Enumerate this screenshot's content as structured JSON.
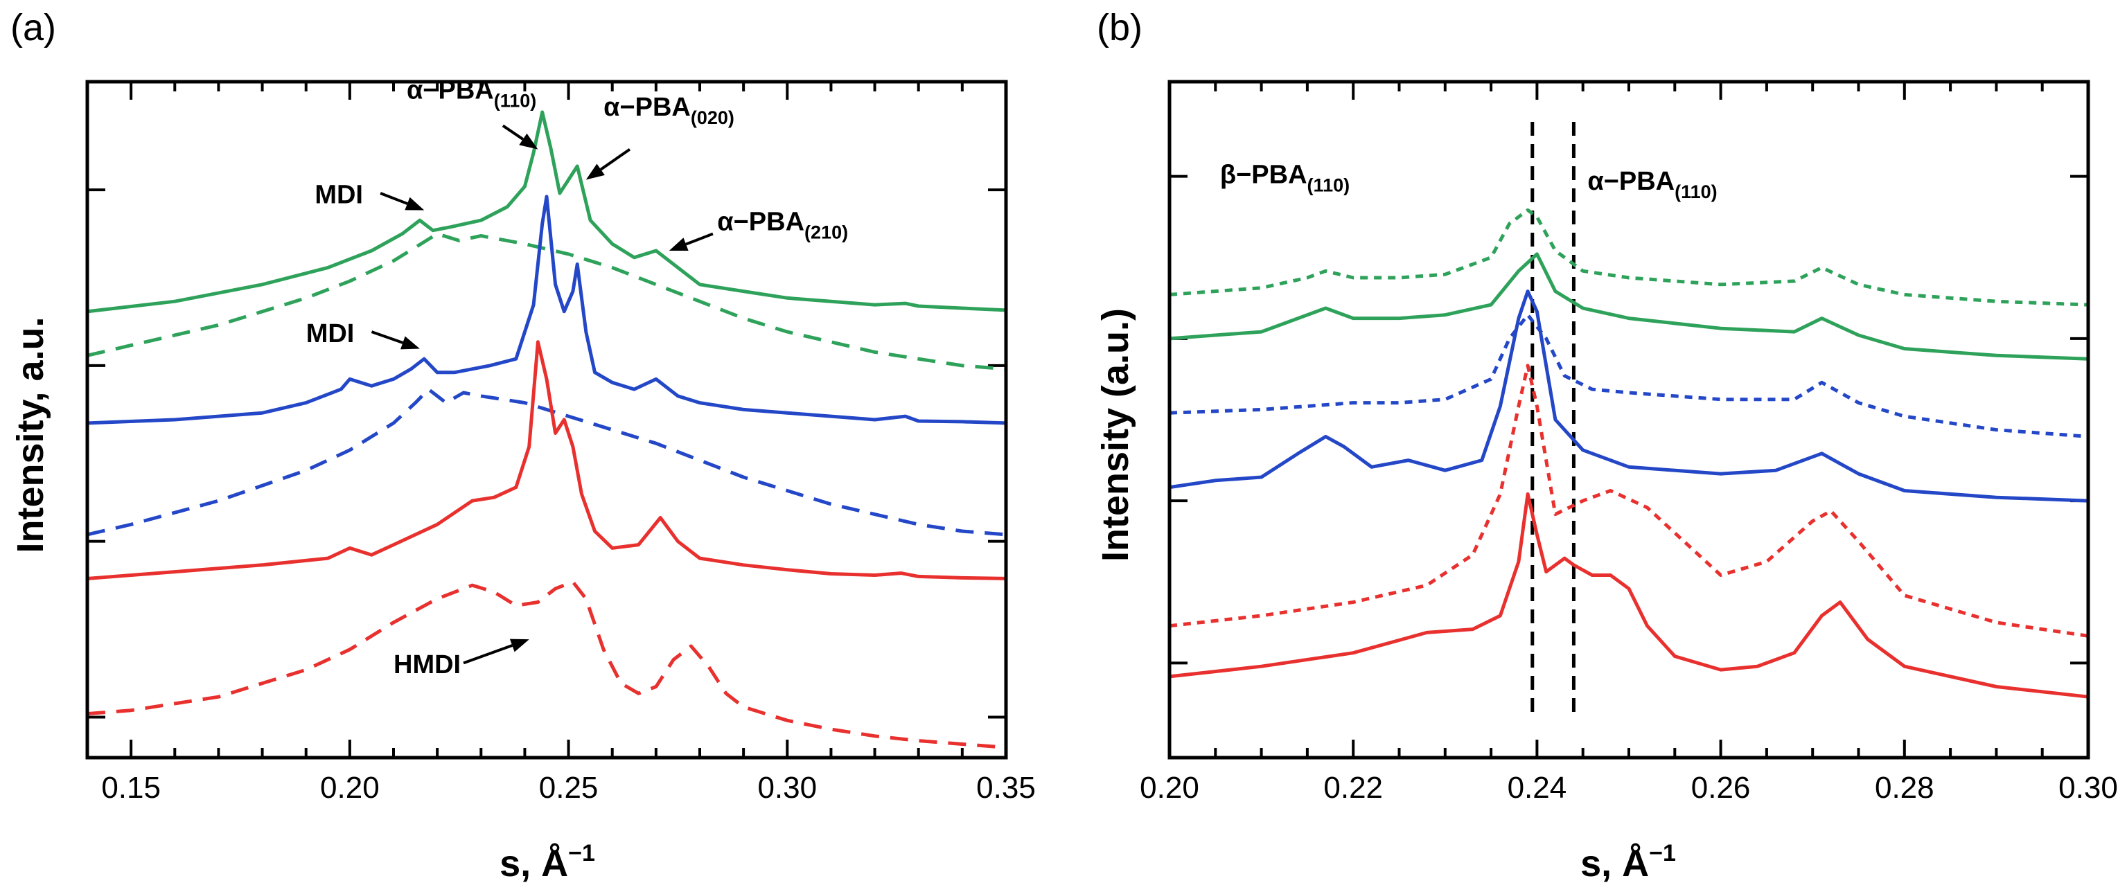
{
  "colors": {
    "green": "#2EA25A",
    "blue": "#2347C7",
    "red": "#E8312E",
    "black": "#000000"
  },
  "chart_data": [
    {
      "panel_label": "(a)",
      "type": "line",
      "xlabel": "s, Å",
      "xlabel_sup": "−1",
      "ylabel": "Intensity, a.u.",
      "xlim": [
        0.14,
        0.35
      ],
      "ylim": [
        0,
        10
      ],
      "xtick_values": [
        0.15,
        0.2,
        0.25,
        0.3,
        0.35
      ],
      "xtick_labels": [
        "0.15",
        "0.20",
        "0.25",
        "0.30",
        "0.35"
      ],
      "ytick_values": [
        0.6,
        3.2,
        5.8,
        8.4
      ],
      "series": [
        {
          "name": "green solid",
          "color": "#2EA25A",
          "dash": "solid",
          "x": [
            0.14,
            0.16,
            0.18,
            0.195,
            0.205,
            0.212,
            0.216,
            0.219,
            0.223,
            0.23,
            0.236,
            0.24,
            0.242,
            0.244,
            0.246,
            0.248,
            0.25,
            0.252,
            0.255,
            0.26,
            0.265,
            0.27,
            0.275,
            0.28,
            0.29,
            0.3,
            0.31,
            0.32,
            0.327,
            0.33,
            0.34,
            0.35
          ],
          "y": [
            6.6,
            6.75,
            7.0,
            7.25,
            7.5,
            7.75,
            7.95,
            7.8,
            7.85,
            7.95,
            8.15,
            8.45,
            8.95,
            9.55,
            9.0,
            8.35,
            8.55,
            8.75,
            7.95,
            7.6,
            7.4,
            7.5,
            7.25,
            7.0,
            6.9,
            6.8,
            6.75,
            6.7,
            6.72,
            6.68,
            6.65,
            6.62
          ]
        },
        {
          "name": "green dashed",
          "color": "#2EA25A",
          "dash": "dashed",
          "x": [
            0.14,
            0.15,
            0.17,
            0.19,
            0.2,
            0.21,
            0.215,
            0.22,
            0.225,
            0.23,
            0.24,
            0.25,
            0.26,
            0.27,
            0.28,
            0.29,
            0.3,
            0.31,
            0.32,
            0.33,
            0.34,
            0.35
          ],
          "y": [
            5.95,
            6.1,
            6.4,
            6.8,
            7.05,
            7.35,
            7.55,
            7.75,
            7.65,
            7.72,
            7.6,
            7.45,
            7.25,
            7.0,
            6.75,
            6.5,
            6.3,
            6.15,
            6.0,
            5.9,
            5.8,
            5.75
          ]
        },
        {
          "name": "blue solid",
          "color": "#2347C7",
          "dash": "solid",
          "x": [
            0.14,
            0.16,
            0.18,
            0.19,
            0.198,
            0.2,
            0.205,
            0.21,
            0.214,
            0.217,
            0.22,
            0.224,
            0.228,
            0.232,
            0.238,
            0.242,
            0.244,
            0.245,
            0.247,
            0.249,
            0.251,
            0.252,
            0.254,
            0.256,
            0.26,
            0.265,
            0.27,
            0.275,
            0.28,
            0.29,
            0.3,
            0.31,
            0.32,
            0.327,
            0.33,
            0.34,
            0.35
          ],
          "y": [
            4.95,
            5.0,
            5.1,
            5.25,
            5.45,
            5.6,
            5.5,
            5.6,
            5.75,
            5.9,
            5.7,
            5.7,
            5.75,
            5.8,
            5.9,
            6.7,
            7.9,
            8.3,
            7.0,
            6.6,
            6.9,
            7.3,
            6.3,
            5.7,
            5.55,
            5.45,
            5.6,
            5.35,
            5.25,
            5.15,
            5.1,
            5.05,
            5.0,
            5.05,
            4.98,
            4.97,
            4.95
          ]
        },
        {
          "name": "blue dashed",
          "color": "#2347C7",
          "dash": "dashed",
          "x": [
            0.14,
            0.15,
            0.17,
            0.19,
            0.2,
            0.21,
            0.215,
            0.218,
            0.222,
            0.226,
            0.23,
            0.24,
            0.25,
            0.26,
            0.27,
            0.28,
            0.29,
            0.3,
            0.31,
            0.32,
            0.33,
            0.34,
            0.35
          ],
          "y": [
            3.3,
            3.45,
            3.8,
            4.25,
            4.55,
            4.95,
            5.25,
            5.45,
            5.25,
            5.4,
            5.35,
            5.25,
            5.05,
            4.85,
            4.65,
            4.4,
            4.15,
            3.95,
            3.75,
            3.6,
            3.45,
            3.35,
            3.3
          ]
        },
        {
          "name": "red solid",
          "color": "#E8312E",
          "dash": "solid",
          "x": [
            0.14,
            0.16,
            0.18,
            0.195,
            0.2,
            0.205,
            0.21,
            0.22,
            0.228,
            0.233,
            0.238,
            0.241,
            0.243,
            0.245,
            0.247,
            0.249,
            0.251,
            0.253,
            0.256,
            0.26,
            0.266,
            0.271,
            0.275,
            0.28,
            0.29,
            0.3,
            0.31,
            0.32,
            0.326,
            0.33,
            0.34,
            0.35
          ],
          "y": [
            2.65,
            2.75,
            2.85,
            2.95,
            3.1,
            3.0,
            3.15,
            3.45,
            3.8,
            3.85,
            4.0,
            4.6,
            6.15,
            5.6,
            4.8,
            5.0,
            4.6,
            3.9,
            3.35,
            3.1,
            3.15,
            3.55,
            3.2,
            2.95,
            2.85,
            2.78,
            2.72,
            2.7,
            2.73,
            2.68,
            2.66,
            2.65
          ]
        },
        {
          "name": "red dashed",
          "color": "#E8312E",
          "dash": "dashed",
          "x": [
            0.14,
            0.15,
            0.17,
            0.19,
            0.2,
            0.21,
            0.22,
            0.228,
            0.233,
            0.238,
            0.243,
            0.247,
            0.251,
            0.254,
            0.258,
            0.262,
            0.266,
            0.27,
            0.274,
            0.278,
            0.282,
            0.286,
            0.29,
            0.3,
            0.31,
            0.32,
            0.33,
            0.34,
            0.35
          ],
          "y": [
            0.65,
            0.7,
            0.9,
            1.3,
            1.6,
            2.0,
            2.35,
            2.55,
            2.45,
            2.25,
            2.3,
            2.5,
            2.6,
            2.35,
            1.6,
            1.1,
            0.95,
            1.05,
            1.45,
            1.65,
            1.35,
            0.95,
            0.75,
            0.55,
            0.42,
            0.32,
            0.25,
            0.2,
            0.15
          ]
        }
      ],
      "annotations": [
        {
          "name": "alpha-pba-110",
          "text": "α−PBA",
          "sub": "(110)",
          "tx": 0.213,
          "ty": 9.75,
          "ax0": 0.235,
          "ay0": 9.35,
          "ax1": 0.243,
          "ay1": 9.0
        },
        {
          "name": "alpha-pba-020",
          "text": "α−PBA",
          "sub": "(020)",
          "tx": 0.258,
          "ty": 9.5,
          "ax0": 0.264,
          "ay0": 9.0,
          "ax1": 0.254,
          "ay1": 8.55
        },
        {
          "name": "mdi-green",
          "text": "MDI",
          "sub": "",
          "tx": 0.192,
          "ty": 8.2,
          "ax0": 0.207,
          "ay0": 8.35,
          "ax1": 0.217,
          "ay1": 8.1
        },
        {
          "name": "alpha-pba-210",
          "text": "α−PBA",
          "sub": "(210)",
          "tx": 0.284,
          "ty": 7.8,
          "ax0": 0.283,
          "ay0": 7.75,
          "ax1": 0.273,
          "ay1": 7.5
        },
        {
          "name": "mdi-blue",
          "text": "MDI",
          "sub": "",
          "tx": 0.19,
          "ty": 6.15,
          "ax0": 0.205,
          "ay0": 6.3,
          "ax1": 0.216,
          "ay1": 6.05
        },
        {
          "name": "hmdi",
          "text": "HMDI",
          "sub": "",
          "tx": 0.21,
          "ty": 1.25,
          "ax0": 0.226,
          "ay0": 1.4,
          "ax1": 0.241,
          "ay1": 1.75
        }
      ],
      "vlines": []
    },
    {
      "panel_label": "(b)",
      "type": "line",
      "xlabel": "s, Å",
      "xlabel_sup": "−1",
      "ylabel": "Intensity (a.u.)",
      "xlim": [
        0.2,
        0.3
      ],
      "ylim": [
        0,
        10
      ],
      "xtick_values": [
        0.2,
        0.22,
        0.24,
        0.26,
        0.28,
        0.3
      ],
      "xtick_labels": [
        "0.20",
        "0.22",
        "0.24",
        "0.26",
        "0.28",
        "0.30"
      ],
      "ytick_values": [
        1.4,
        3.8,
        6.2,
        8.6
      ],
      "series": [
        {
          "name": "green dotted",
          "color": "#2EA25A",
          "dash": "dotted",
          "x": [
            0.2,
            0.21,
            0.215,
            0.217,
            0.22,
            0.225,
            0.23,
            0.235,
            0.237,
            0.239,
            0.24,
            0.242,
            0.245,
            0.25,
            0.26,
            0.268,
            0.271,
            0.275,
            0.28,
            0.29,
            0.3
          ],
          "y": [
            6.85,
            6.95,
            7.1,
            7.2,
            7.1,
            7.1,
            7.15,
            7.4,
            7.9,
            8.1,
            8.0,
            7.5,
            7.2,
            7.1,
            7.0,
            7.05,
            7.25,
            7.0,
            6.85,
            6.75,
            6.7
          ]
        },
        {
          "name": "green solid",
          "color": "#2EA25A",
          "dash": "solid",
          "x": [
            0.2,
            0.21,
            0.214,
            0.217,
            0.22,
            0.225,
            0.23,
            0.235,
            0.238,
            0.24,
            0.242,
            0.245,
            0.25,
            0.26,
            0.268,
            0.271,
            0.275,
            0.28,
            0.29,
            0.3
          ],
          "y": [
            6.2,
            6.3,
            6.5,
            6.65,
            6.5,
            6.5,
            6.55,
            6.7,
            7.2,
            7.45,
            6.9,
            6.65,
            6.5,
            6.35,
            6.3,
            6.5,
            6.25,
            6.05,
            5.95,
            5.9
          ]
        },
        {
          "name": "blue dotted",
          "color": "#2347C7",
          "dash": "dotted",
          "x": [
            0.2,
            0.21,
            0.215,
            0.22,
            0.225,
            0.23,
            0.235,
            0.237,
            0.239,
            0.241,
            0.243,
            0.246,
            0.25,
            0.26,
            0.268,
            0.271,
            0.275,
            0.28,
            0.29,
            0.3
          ],
          "y": [
            5.1,
            5.15,
            5.2,
            5.25,
            5.25,
            5.3,
            5.6,
            6.2,
            6.55,
            6.2,
            5.65,
            5.45,
            5.4,
            5.3,
            5.3,
            5.55,
            5.25,
            5.05,
            4.85,
            4.75
          ]
        },
        {
          "name": "blue solid",
          "color": "#2347C7",
          "dash": "solid",
          "x": [
            0.2,
            0.205,
            0.21,
            0.214,
            0.217,
            0.219,
            0.222,
            0.226,
            0.23,
            0.234,
            0.236,
            0.238,
            0.239,
            0.24,
            0.242,
            0.245,
            0.25,
            0.26,
            0.266,
            0.271,
            0.275,
            0.28,
            0.29,
            0.3
          ],
          "y": [
            4.0,
            4.1,
            4.15,
            4.5,
            4.75,
            4.6,
            4.3,
            4.4,
            4.25,
            4.4,
            5.2,
            6.5,
            6.9,
            6.6,
            5.0,
            4.55,
            4.3,
            4.2,
            4.25,
            4.5,
            4.2,
            3.95,
            3.85,
            3.8
          ]
        },
        {
          "name": "red dotted",
          "color": "#E8312E",
          "dash": "dotted",
          "x": [
            0.2,
            0.21,
            0.22,
            0.228,
            0.233,
            0.236,
            0.238,
            0.239,
            0.24,
            0.242,
            0.245,
            0.248,
            0.252,
            0.256,
            0.26,
            0.265,
            0.27,
            0.272,
            0.275,
            0.28,
            0.29,
            0.3
          ],
          "y": [
            1.95,
            2.1,
            2.3,
            2.55,
            3.0,
            3.9,
            5.2,
            5.8,
            5.2,
            3.6,
            3.8,
            3.95,
            3.7,
            3.2,
            2.7,
            2.9,
            3.5,
            3.65,
            3.2,
            2.4,
            2.0,
            1.8
          ]
        },
        {
          "name": "red solid",
          "color": "#E8312E",
          "dash": "solid",
          "x": [
            0.2,
            0.21,
            0.22,
            0.228,
            0.233,
            0.236,
            0.238,
            0.239,
            0.24,
            0.241,
            0.243,
            0.244,
            0.246,
            0.248,
            0.25,
            0.252,
            0.255,
            0.26,
            0.264,
            0.268,
            0.271,
            0.273,
            0.276,
            0.28,
            0.29,
            0.3
          ],
          "y": [
            1.2,
            1.35,
            1.55,
            1.85,
            1.9,
            2.1,
            2.9,
            3.9,
            3.3,
            2.75,
            2.95,
            2.85,
            2.7,
            2.7,
            2.5,
            1.95,
            1.5,
            1.3,
            1.35,
            1.55,
            2.1,
            2.3,
            1.75,
            1.35,
            1.05,
            0.9
          ]
        }
      ],
      "annotations": [
        {
          "name": "beta-pba-110",
          "text": "β−PBA",
          "sub": "(110)",
          "tx": 0.2055,
          "ty": 8.5,
          "ax0": null,
          "ay0": null,
          "ax1": null,
          "ay1": null
        },
        {
          "name": "alpha-pba-110-b",
          "text": "α−PBA",
          "sub": "(110)",
          "tx": 0.2455,
          "ty": 8.4,
          "ax0": null,
          "ay0": null,
          "ax1": null,
          "ay1": null
        }
      ],
      "vlines": [
        0.2395,
        0.244
      ]
    }
  ]
}
